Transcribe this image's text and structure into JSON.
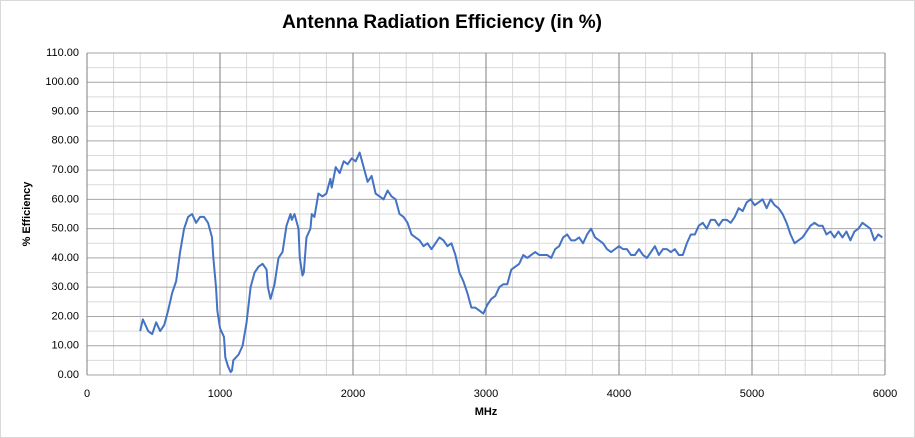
{
  "chart_data": {
    "type": "line",
    "title": "Antenna Radiation Efficiency (in %)",
    "xlabel": "MHz",
    "ylabel": "% Efficiency",
    "grid": true,
    "xlim": [
      0,
      6000
    ],
    "ylim": [
      0,
      110
    ],
    "xticks": [
      0,
      1000,
      2000,
      3000,
      4000,
      5000,
      6000
    ],
    "yticks": [
      {
        "value": 0,
        "label": "0.00"
      },
      {
        "value": 10,
        "label": "10.00"
      },
      {
        "value": 20,
        "label": "20.00"
      },
      {
        "value": 30,
        "label": "30.00"
      },
      {
        "value": 40,
        "label": "40.00"
      },
      {
        "value": 50,
        "label": "50.00"
      },
      {
        "value": 60,
        "label": "60.00"
      },
      {
        "value": 70,
        "label": "70.00"
      },
      {
        "value": 80,
        "label": "80.00"
      },
      {
        "value": 90,
        "label": "90.00"
      },
      {
        "value": 100,
        "label": "100.00"
      },
      {
        "value": 110,
        "label": "110.00"
      }
    ],
    "minor_xticks": [
      200,
      400,
      600,
      800,
      1200,
      1400,
      1600,
      1800,
      2200,
      2400,
      2600,
      2800,
      3200,
      3400,
      3600,
      3800,
      4200,
      4400,
      4600,
      4800,
      5200,
      5400,
      5600,
      5800
    ],
    "minor_yticks": [
      5,
      15,
      25,
      35,
      45,
      55,
      65,
      75,
      85,
      95,
      105
    ],
    "series": [
      {
        "color": "#4472c4",
        "x": [
          400,
          420,
          460,
          490,
          520,
          550,
          580,
          610,
          640,
          670,
          700,
          730,
          760,
          790,
          820,
          850,
          880,
          910,
          940,
          950,
          970,
          980,
          1000,
          1030,
          1040,
          1060,
          1080,
          1090,
          1100,
          1140,
          1170,
          1200,
          1230,
          1260,
          1290,
          1320,
          1350,
          1360,
          1380,
          1410,
          1440,
          1470,
          1500,
          1530,
          1540,
          1560,
          1590,
          1600,
          1620,
          1630,
          1650,
          1680,
          1690,
          1710,
          1740,
          1770,
          1800,
          1830,
          1840,
          1870,
          1900,
          1930,
          1960,
          1990,
          2020,
          2050,
          2080,
          2110,
          2140,
          2170,
          2200,
          2230,
          2260,
          2290,
          2320,
          2350,
          2380,
          2410,
          2440,
          2470,
          2500,
          2530,
          2560,
          2590,
          2620,
          2650,
          2680,
          2710,
          2740,
          2770,
          2800,
          2830,
          2860,
          2890,
          2920,
          2950,
          2980,
          3010,
          3040,
          3070,
          3100,
          3130,
          3160,
          3190,
          3220,
          3250,
          3280,
          3310,
          3340,
          3370,
          3400,
          3430,
          3460,
          3490,
          3520,
          3550,
          3580,
          3610,
          3640,
          3670,
          3700,
          3730,
          3760,
          3790,
          3820,
          3850,
          3880,
          3910,
          3940,
          3970,
          4000,
          4030,
          4060,
          4090,
          4120,
          4150,
          4180,
          4210,
          4240,
          4270,
          4300,
          4330,
          4360,
          4390,
          4420,
          4450,
          4480,
          4510,
          4540,
          4570,
          4600,
          4630,
          4660,
          4690,
          4720,
          4750,
          4780,
          4810,
          4840,
          4870,
          4900,
          4930,
          4960,
          4990,
          5020,
          5050,
          5080,
          5110,
          5140,
          5170,
          5200,
          5230,
          5260,
          5290,
          5320,
          5350,
          5380,
          5410,
          5440,
          5470,
          5500,
          5530,
          5560,
          5590,
          5620,
          5650,
          5680,
          5710,
          5740,
          5770,
          5800,
          5830,
          5860,
          5890,
          5920,
          5950,
          5980
        ],
        "values": [
          15,
          19,
          15,
          14,
          18,
          15,
          17,
          22,
          28,
          32,
          42,
          50,
          54,
          55,
          52,
          54,
          54,
          52,
          47,
          40,
          30,
          22,
          16,
          13,
          6,
          3,
          1,
          1.5,
          5,
          7,
          10,
          18,
          30,
          35,
          37,
          38,
          36,
          30,
          26,
          31,
          40,
          42,
          51,
          55,
          53,
          55,
          50,
          40,
          34,
          35,
          47,
          50,
          55,
          54,
          62,
          61,
          62,
          67,
          64,
          71,
          69,
          73,
          72,
          74,
          73,
          76,
          71,
          66,
          68,
          62,
          61,
          60,
          63,
          61,
          60,
          55,
          54,
          52,
          48,
          47,
          46,
          44,
          45,
          43,
          45,
          47,
          46,
          44,
          45,
          41,
          35,
          32,
          28,
          23,
          23,
          22,
          21,
          24,
          26,
          27,
          30,
          31,
          31,
          36,
          37,
          38,
          41,
          40,
          41,
          42,
          41,
          41,
          41,
          40,
          43,
          44,
          47,
          48,
          46,
          46,
          47,
          45,
          48,
          50,
          47,
          46,
          45,
          43,
          42,
          43,
          44,
          43,
          43,
          41,
          41,
          43,
          41,
          40,
          42,
          44,
          41,
          43,
          43,
          42,
          43,
          41,
          41,
          45,
          48,
          48,
          51,
          52,
          50,
          53,
          53,
          51,
          53,
          53,
          52,
          54,
          57,
          56,
          59,
          60,
          58,
          59,
          60,
          57,
          60,
          58,
          57,
          55,
          52,
          48,
          45,
          46,
          47,
          49,
          51,
          52,
          51,
          51,
          48,
          49,
          47,
          49,
          47,
          49,
          46,
          49,
          50,
          52,
          51,
          50,
          46,
          48,
          47
        ]
      }
    ]
  }
}
